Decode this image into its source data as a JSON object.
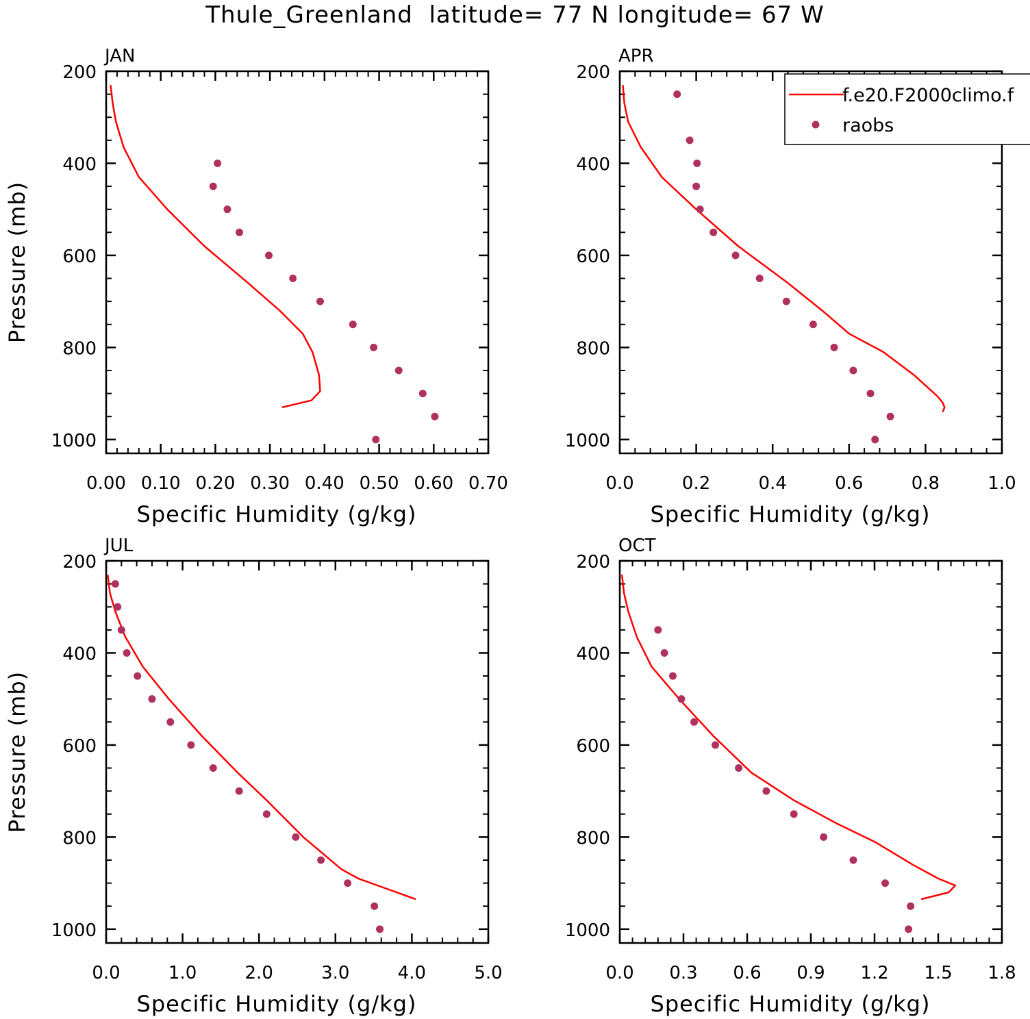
{
  "title": "Thule_Greenland  latitude= 77 N longitude= 67 W",
  "colors": {
    "model": "#ff0000",
    "obs": "#b03060",
    "axis": "#000000"
  },
  "legend": {
    "model_label": "f.e20.F2000climo.f",
    "obs_label": "raobs"
  },
  "chart_data": [
    {
      "type": "line",
      "panel_label": "JAN",
      "xlabel": "Specific Humidity (g/kg)",
      "ylabel": "Pressure (mb)",
      "xlim": [
        0.0,
        0.7
      ],
      "ylim": [
        1030,
        200
      ],
      "xticks": [
        "0.00",
        "0.10",
        "0.20",
        "0.30",
        "0.40",
        "0.50",
        "0.60",
        "0.70"
      ],
      "yticks": [
        "200",
        "400",
        "600",
        "800",
        "1000"
      ],
      "series": [
        {
          "name": "f.e20.F2000climo.f",
          "x": [
            0.008,
            0.012,
            0.018,
            0.032,
            0.06,
            0.112,
            0.18,
            0.26,
            0.318,
            0.36,
            0.378,
            0.39,
            0.392,
            0.376,
            0.322
          ],
          "y": [
            230,
            270,
            310,
            365,
            430,
            500,
            580,
            660,
            720,
            770,
            810,
            860,
            895,
            915,
            930
          ]
        },
        {
          "name": "raobs",
          "x": [
            0.204,
            0.196,
            0.222,
            0.244,
            0.298,
            0.342,
            0.392,
            0.452,
            0.49,
            0.536,
            0.58,
            0.602,
            0.494
          ],
          "y": [
            400,
            450,
            500,
            550,
            600,
            650,
            700,
            750,
            800,
            850,
            900,
            950,
            1000
          ]
        }
      ]
    },
    {
      "type": "line",
      "panel_label": "APR",
      "xlabel": "Specific Humidity (g/kg)",
      "ylabel": "",
      "xlim": [
        0.0,
        1.0
      ],
      "ylim": [
        1030,
        200
      ],
      "xticks": [
        "0.0",
        "0.2",
        "0.4",
        "0.6",
        "0.8",
        "1.0"
      ],
      "yticks": [
        "200",
        "400",
        "600",
        "800",
        "1000"
      ],
      "legend_position": "top-right",
      "series": [
        {
          "name": "f.e20.F2000climo.f",
          "x": [
            0.008,
            0.012,
            0.022,
            0.055,
            0.11,
            0.2,
            0.31,
            0.44,
            0.53,
            0.6,
            0.69,
            0.77,
            0.83,
            0.845,
            0.85,
            0.845
          ],
          "y": [
            230,
            270,
            310,
            365,
            430,
            500,
            580,
            660,
            720,
            770,
            810,
            860,
            905,
            920,
            930,
            940
          ]
        },
        {
          "name": "raobs",
          "x": [
            0.15,
            0.183,
            0.202,
            0.2,
            0.21,
            0.245,
            0.303,
            0.366,
            0.436,
            0.506,
            0.561,
            0.611,
            0.656,
            0.708,
            0.668
          ],
          "y": [
            250,
            350,
            400,
            450,
            500,
            550,
            600,
            650,
            700,
            750,
            800,
            850,
            900,
            950,
            1000
          ]
        }
      ]
    },
    {
      "type": "line",
      "panel_label": "JUL",
      "xlabel": "Specific Humidity (g/kg)",
      "ylabel": "Pressure (mb)",
      "xlim": [
        0.0,
        5.0
      ],
      "ylim": [
        1030,
        200
      ],
      "xticks": [
        "0.0",
        "1.0",
        "2.0",
        "3.0",
        "4.0",
        "5.0"
      ],
      "yticks": [
        "200",
        "400",
        "600",
        "800",
        "1000"
      ],
      "series": [
        {
          "name": "f.e20.F2000climo.f",
          "x": [
            0.02,
            0.05,
            0.12,
            0.25,
            0.48,
            0.82,
            1.25,
            1.72,
            2.1,
            2.58,
            3.08,
            3.3,
            3.55,
            4.05
          ],
          "y": [
            230,
            270,
            310,
            365,
            430,
            500,
            580,
            660,
            720,
            800,
            870,
            890,
            905,
            935
          ]
        },
        {
          "name": "raobs",
          "x": [
            0.12,
            0.15,
            0.2,
            0.27,
            0.41,
            0.6,
            0.84,
            1.11,
            1.4,
            1.74,
            2.1,
            2.48,
            2.81,
            3.16,
            3.51,
            3.58
          ],
          "y": [
            250,
            300,
            350,
            400,
            450,
            500,
            550,
            600,
            650,
            700,
            750,
            800,
            850,
            900,
            950,
            1000
          ]
        }
      ]
    },
    {
      "type": "line",
      "panel_label": "OCT",
      "xlabel": "Specific Humidity (g/kg)",
      "ylabel": "",
      "xlim": [
        0.0,
        1.8
      ],
      "ylim": [
        1030,
        200
      ],
      "xticks": [
        "0.0",
        "0.3",
        "0.6",
        "0.9",
        "1.2",
        "1.5",
        "1.8"
      ],
      "yticks": [
        "200",
        "400",
        "600",
        "800",
        "1000"
      ],
      "series": [
        {
          "name": "f.e20.F2000climo.f",
          "x": [
            0.01,
            0.02,
            0.04,
            0.08,
            0.15,
            0.28,
            0.44,
            0.62,
            0.82,
            1.02,
            1.2,
            1.38,
            1.5,
            1.58,
            1.55,
            1.42
          ],
          "y": [
            230,
            270,
            310,
            365,
            430,
            500,
            580,
            660,
            720,
            770,
            810,
            860,
            890,
            905,
            920,
            935
          ]
        },
        {
          "name": "raobs",
          "x": [
            0.18,
            0.21,
            0.25,
            0.29,
            0.35,
            0.45,
            0.56,
            0.69,
            0.82,
            0.96,
            1.1,
            1.25,
            1.37,
            1.36
          ],
          "y": [
            350,
            400,
            450,
            500,
            550,
            600,
            650,
            700,
            750,
            800,
            850,
            900,
            950,
            1000
          ]
        }
      ]
    }
  ]
}
